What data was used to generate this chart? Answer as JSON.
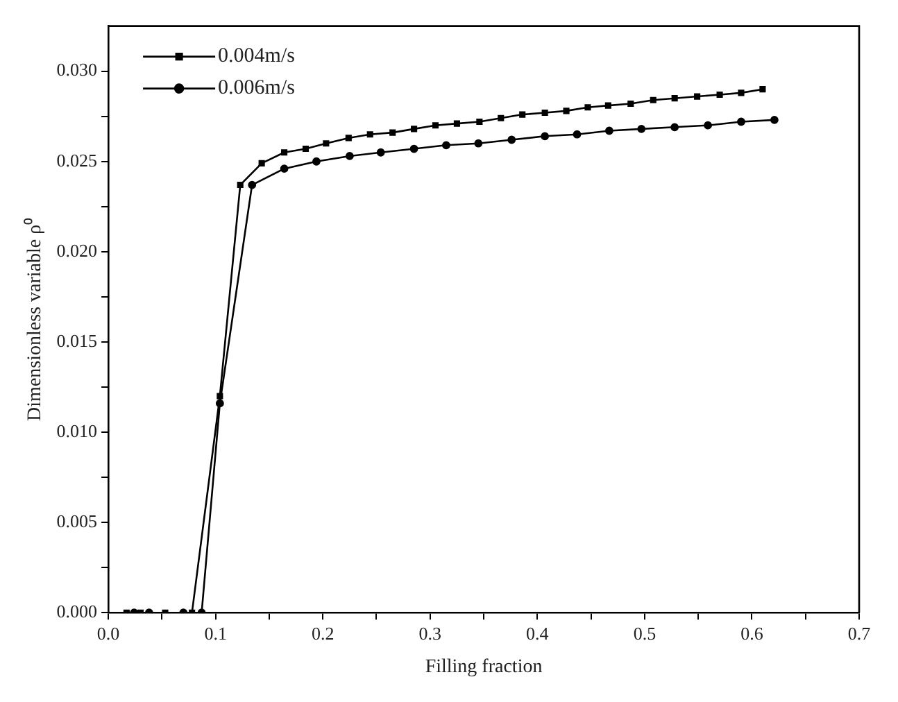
{
  "chart_data": {
    "type": "line",
    "xlabel": "Filling fraction",
    "ylabel": "Dimensionless variable ρ⁰",
    "xlim": [
      0,
      0.7
    ],
    "ylim": [
      0,
      0.0325
    ],
    "xticks": [
      {
        "value": 0,
        "label": "0.0"
      },
      {
        "value": 0.05,
        "label": null
      },
      {
        "value": 0.1,
        "label": "0.1"
      },
      {
        "value": 0.15,
        "label": null
      },
      {
        "value": 0.2,
        "label": "0.2"
      },
      {
        "value": 0.25,
        "label": null
      },
      {
        "value": 0.3,
        "label": "0.3"
      },
      {
        "value": 0.35,
        "label": null
      },
      {
        "value": 0.4,
        "label": "0.4"
      },
      {
        "value": 0.45,
        "label": null
      },
      {
        "value": 0.5,
        "label": "0.5"
      },
      {
        "value": 0.55,
        "label": null
      },
      {
        "value": 0.6,
        "label": "0.6"
      },
      {
        "value": 0.65,
        "label": null
      },
      {
        "value": 0.7,
        "label": "0.7"
      }
    ],
    "yticks": [
      {
        "value": 0,
        "label": "0.000"
      },
      {
        "value": 0.0025,
        "label": null
      },
      {
        "value": 0.005,
        "label": "0.005"
      },
      {
        "value": 0.0075,
        "label": null
      },
      {
        "value": 0.01,
        "label": "0.010"
      },
      {
        "value": 0.0125,
        "label": null
      },
      {
        "value": 0.015,
        "label": "0.015"
      },
      {
        "value": 0.0175,
        "label": null
      },
      {
        "value": 0.02,
        "label": "0.020"
      },
      {
        "value": 0.0225,
        "label": null
      },
      {
        "value": 0.025,
        "label": "0.025"
      },
      {
        "value": 0.0275,
        "label": null
      },
      {
        "value": 0.03,
        "label": "0.030"
      }
    ],
    "grid": false,
    "legend": "top left",
    "line_style": "solid",
    "series": [
      {
        "name": "0.004m/s",
        "color": "#000000",
        "marker": "square",
        "x": [
          0.017,
          0.03,
          0.053,
          0.078,
          0.104,
          0.123,
          0.143,
          0.164,
          0.184,
          0.203,
          0.224,
          0.244,
          0.265,
          0.285,
          0.305,
          0.325,
          0.346,
          0.366,
          0.386,
          0.407,
          0.427,
          0.447,
          0.466,
          0.487,
          0.508,
          0.528,
          0.549,
          0.57,
          0.59,
          0.61
        ],
        "values": [
          0,
          0,
          0,
          0,
          0.012,
          0.0237,
          0.0249,
          0.0255,
          0.0257,
          0.026,
          0.0263,
          0.0265,
          0.0266,
          0.0268,
          0.027,
          0.0271,
          0.0272,
          0.0274,
          0.0276,
          0.0277,
          0.0278,
          0.028,
          0.0281,
          0.0282,
          0.0284,
          0.0285,
          0.0286,
          0.0287,
          0.0288,
          0.029
        ]
      },
      {
        "name": "0.006m/s",
        "color": "#000000",
        "marker": "circle",
        "x": [
          0.024,
          0.038,
          0.07,
          0.087,
          0.104,
          0.134,
          0.164,
          0.194,
          0.225,
          0.254,
          0.285,
          0.315,
          0.345,
          0.376,
          0.407,
          0.437,
          0.467,
          0.497,
          0.528,
          0.559,
          0.59,
          0.621
        ],
        "values": [
          0,
          0,
          0,
          0,
          0.0116,
          0.0237,
          0.0246,
          0.025,
          0.0253,
          0.0255,
          0.0257,
          0.0259,
          0.026,
          0.0262,
          0.0264,
          0.0265,
          0.0267,
          0.0268,
          0.0269,
          0.027,
          0.0272,
          0.0273
        ]
      }
    ]
  }
}
